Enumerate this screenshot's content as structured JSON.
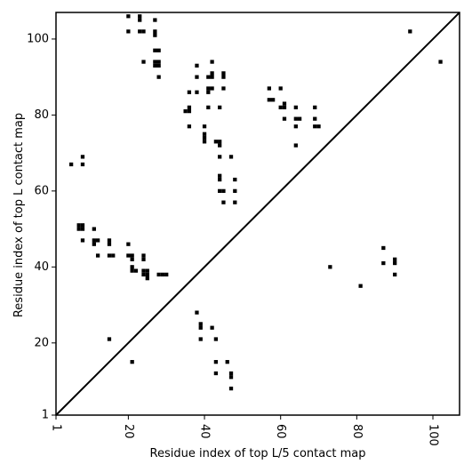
{
  "chart_data": {
    "type": "scatter",
    "title": "",
    "xlabel": "Residue index of top L/5 contact map",
    "ylabel": "Residue index of top L contact map",
    "xlim": [
      1,
      107
    ],
    "ylim": [
      1,
      107
    ],
    "x_ticks": [
      1,
      20,
      40,
      60,
      80,
      100
    ],
    "y_ticks": [
      1,
      20,
      40,
      60,
      80,
      100
    ],
    "x_tick_labels": [
      "1",
      "20",
      "40",
      "60",
      "80",
      "100"
    ],
    "y_tick_labels": [
      "1",
      "20",
      "40",
      "60",
      "80",
      "100"
    ],
    "x_tick_rotation": -90,
    "grid": false,
    "diagonal": true,
    "marker": "square",
    "color": "#000000",
    "series": [
      {
        "points": [
          [
            5,
            67
          ],
          [
            8,
            67
          ],
          [
            8,
            69
          ],
          [
            7,
            51
          ],
          [
            8,
            51
          ],
          [
            7,
            50
          ],
          [
            8,
            50
          ],
          [
            8,
            47
          ],
          [
            11,
            50
          ],
          [
            11,
            47
          ],
          [
            12,
            47
          ],
          [
            11,
            46
          ],
          [
            12,
            43
          ],
          [
            15,
            47
          ],
          [
            15,
            46
          ],
          [
            15,
            43
          ],
          [
            16,
            43
          ],
          [
            15,
            21
          ],
          [
            20,
            46
          ],
          [
            20,
            43
          ],
          [
            21,
            43
          ],
          [
            21,
            42
          ],
          [
            21,
            40
          ],
          [
            21,
            39
          ],
          [
            22,
            39
          ],
          [
            24,
            43
          ],
          [
            24,
            42
          ],
          [
            24,
            39
          ],
          [
            25,
            39
          ],
          [
            24,
            38
          ],
          [
            25,
            38
          ],
          [
            25,
            37
          ],
          [
            28,
            38
          ],
          [
            29,
            38
          ],
          [
            30,
            38
          ],
          [
            21,
            15
          ],
          [
            20,
            106
          ],
          [
            20,
            102
          ],
          [
            23,
            106
          ],
          [
            23,
            105
          ],
          [
            23,
            102
          ],
          [
            24,
            102
          ],
          [
            27,
            105
          ],
          [
            27,
            102
          ],
          [
            27,
            101
          ],
          [
            27,
            97
          ],
          [
            28,
            97
          ],
          [
            27,
            94
          ],
          [
            28,
            94
          ],
          [
            27,
            93
          ],
          [
            28,
            93
          ],
          [
            24,
            94
          ],
          [
            28,
            90
          ],
          [
            35,
            81
          ],
          [
            36,
            81
          ],
          [
            36,
            82
          ],
          [
            36,
            86
          ],
          [
            36,
            77
          ],
          [
            38,
            93
          ],
          [
            38,
            90
          ],
          [
            38,
            86
          ],
          [
            40,
            77
          ],
          [
            40,
            75
          ],
          [
            40,
            74
          ],
          [
            40,
            73
          ],
          [
            41,
            90
          ],
          [
            42,
            90
          ],
          [
            42,
            91
          ],
          [
            41,
            87
          ],
          [
            42,
            87
          ],
          [
            41,
            86
          ],
          [
            41,
            82
          ],
          [
            42,
            94
          ],
          [
            43,
            73
          ],
          [
            44,
            73
          ],
          [
            44,
            72
          ],
          [
            44,
            82
          ],
          [
            44,
            69
          ],
          [
            45,
            91
          ],
          [
            45,
            90
          ],
          [
            45,
            87
          ],
          [
            44,
            64
          ],
          [
            44,
            63
          ],
          [
            44,
            60
          ],
          [
            45,
            60
          ],
          [
            45,
            57
          ],
          [
            47,
            69
          ],
          [
            48,
            63
          ],
          [
            48,
            60
          ],
          [
            48,
            57
          ],
          [
            57,
            87
          ],
          [
            57,
            84
          ],
          [
            58,
            84
          ],
          [
            60,
            87
          ],
          [
            60,
            82
          ],
          [
            61,
            82
          ],
          [
            61,
            83
          ],
          [
            61,
            79
          ],
          [
            64,
            82
          ],
          [
            64,
            79
          ],
          [
            65,
            79
          ],
          [
            64,
            77
          ],
          [
            64,
            72
          ],
          [
            69,
            82
          ],
          [
            69,
            79
          ],
          [
            69,
            77
          ],
          [
            70,
            77
          ],
          [
            38,
            28
          ],
          [
            39,
            25
          ],
          [
            39,
            24
          ],
          [
            39,
            21
          ],
          [
            42,
            24
          ],
          [
            43,
            21
          ],
          [
            43,
            15
          ],
          [
            43,
            12
          ],
          [
            46,
            15
          ],
          [
            47,
            12
          ],
          [
            47,
            11
          ],
          [
            47,
            8
          ],
          [
            73,
            40
          ],
          [
            81,
            35
          ],
          [
            87,
            45
          ],
          [
            87,
            41
          ],
          [
            90,
            42
          ],
          [
            90,
            41
          ],
          [
            90,
            38
          ],
          [
            94,
            102
          ],
          [
            102,
            94
          ]
        ]
      }
    ]
  }
}
